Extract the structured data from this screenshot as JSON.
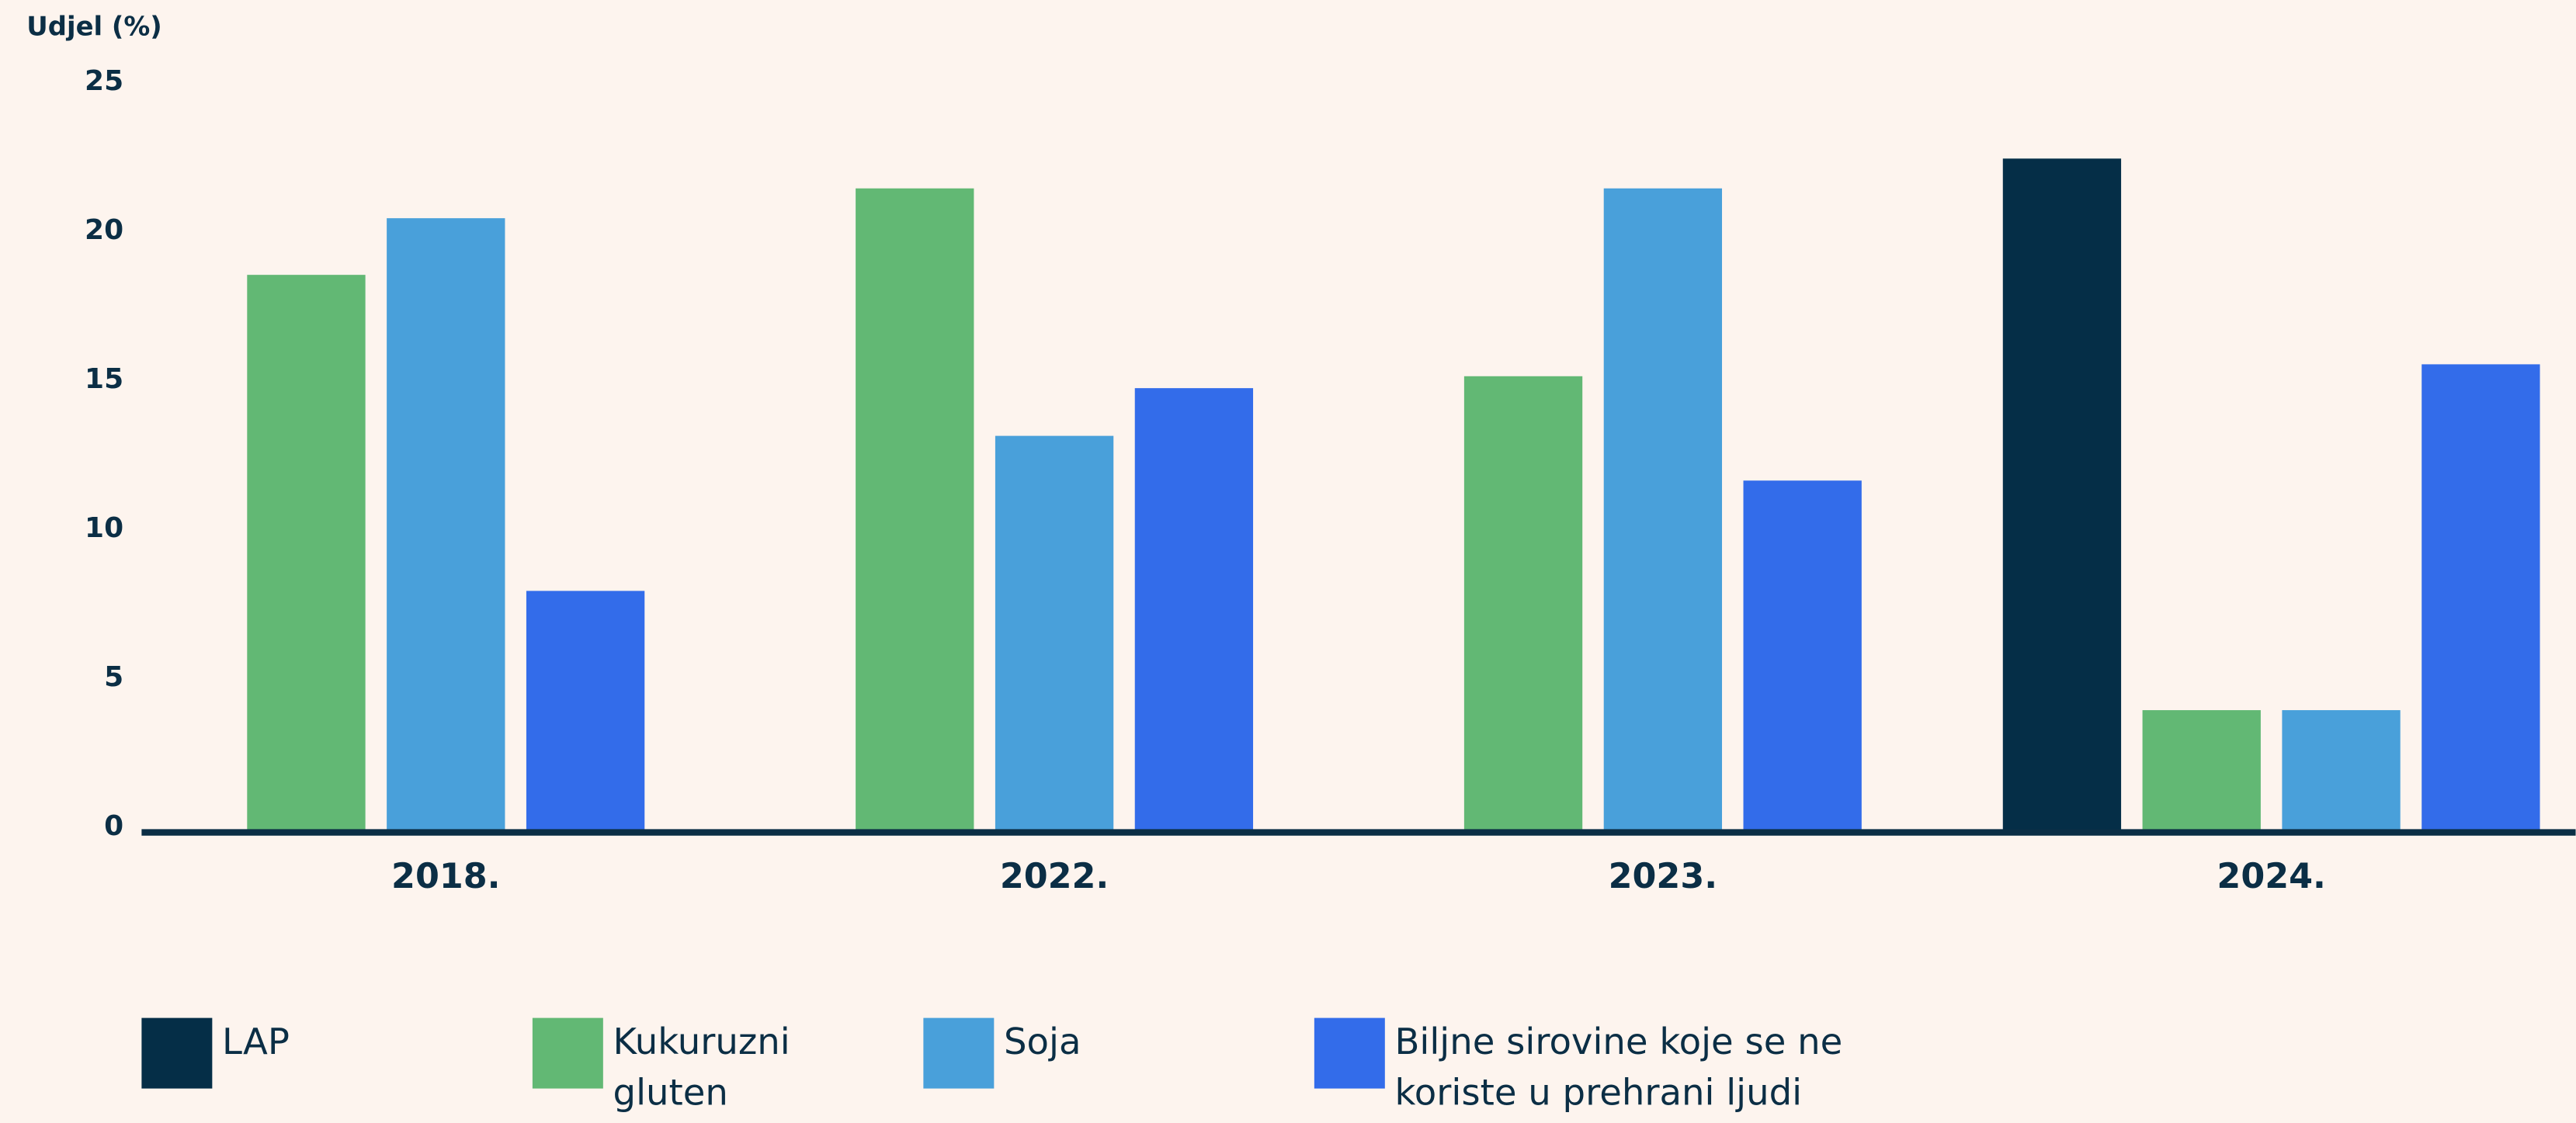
{
  "chart_data": {
    "type": "bar",
    "y_label": "Udjel (%)",
    "categories": [
      "2018.",
      "2022.",
      "2023.",
      "2024."
    ],
    "series": [
      {
        "name": "LAP",
        "color": "#052e47",
        "values": [
          null,
          null,
          null,
          22.6
        ]
      },
      {
        "name": "Kukuruzni gluten",
        "color": "#62b874",
        "values": [
          18.7,
          21.6,
          15.3,
          4.1
        ]
      },
      {
        "name": "Soja",
        "color": "#49a0da",
        "values": [
          20.6,
          13.3,
          21.6,
          4.1
        ]
      },
      {
        "name": "Biljne sirovine koje se ne koriste u prehrani ljudi",
        "color": "#336cea",
        "values": [
          8.1,
          14.9,
          11.8,
          15.7
        ]
      }
    ],
    "ylim": [
      0,
      25
    ],
    "yticks": [
      0,
      5,
      10,
      15,
      20,
      25
    ],
    "grid": false,
    "legend": "bottom"
  }
}
